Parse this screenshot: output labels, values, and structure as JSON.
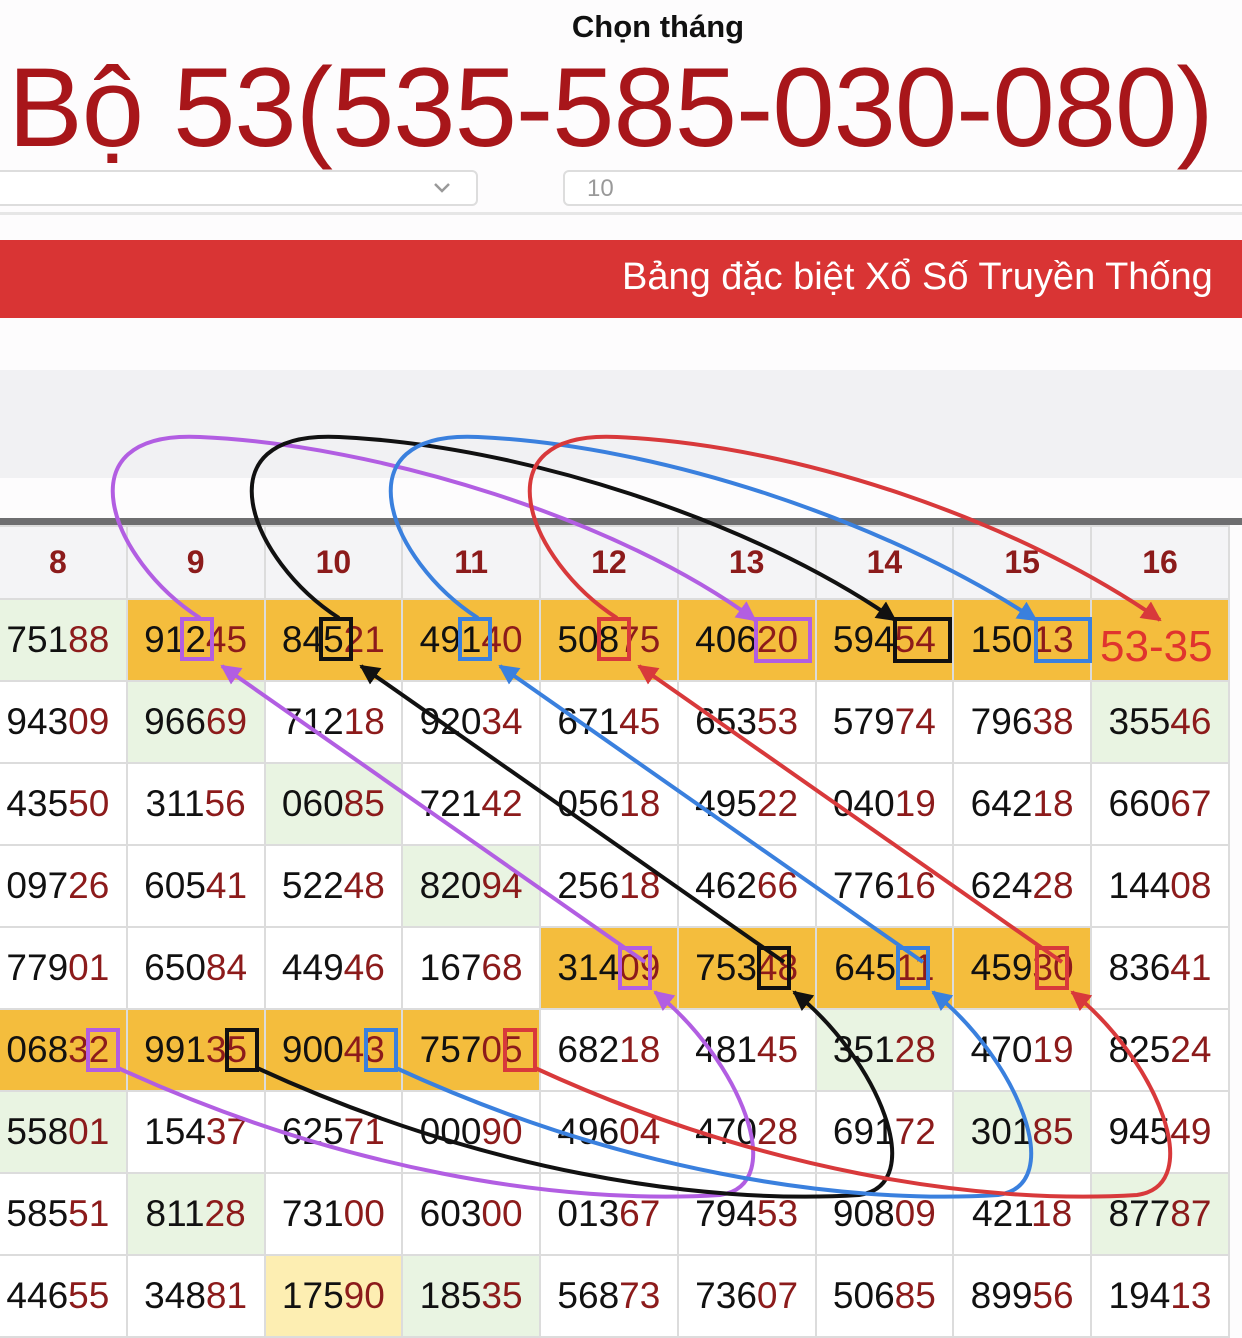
{
  "header": {
    "month_label": "Chọn tháng",
    "select_1_value": "",
    "select_2_value": "10"
  },
  "title": "Bộ 53(535-585-030-080)",
  "banner": "Bảng đặc biệt Xổ Số Truyền Thống",
  "table": {
    "columns": [
      "8",
      "9",
      "10",
      "11",
      "12",
      "13",
      "14",
      "15",
      "16"
    ],
    "rows": [
      [
        "75188",
        "91245",
        "84521",
        "49140",
        "50875",
        "40620",
        "59454",
        "15013",
        "53-35"
      ],
      [
        "94309",
        "96669",
        "71218",
        "92034",
        "67145",
        "65353",
        "57974",
        "79638",
        "35546"
      ],
      [
        "43550",
        "31156",
        "06085",
        "72142",
        "05618",
        "49522",
        "04019",
        "64218",
        "66067"
      ],
      [
        "09726",
        "60541",
        "52248",
        "82094",
        "25618",
        "46266",
        "77616",
        "62428",
        "14408"
      ],
      [
        "77901",
        "65084",
        "44946",
        "16768",
        "31409",
        "75348",
        "64511",
        "45930",
        "83641"
      ],
      [
        "06832",
        "99135",
        "90043",
        "75705",
        "68218",
        "48145",
        "35128",
        "47019",
        "82524"
      ],
      [
        "55801",
        "15437",
        "62571",
        "00090",
        "49604",
        "47028",
        "69172",
        "30185",
        "94549"
      ],
      [
        "58551",
        "81128",
        "73100",
        "60300",
        "01367",
        "79453",
        "90809",
        "42118",
        "87787"
      ],
      [
        "44655",
        "34881",
        "17590",
        "18535",
        "56873",
        "73607",
        "50685",
        "89956",
        "19413"
      ]
    ],
    "cell_highlights": [
      [
        "green",
        "orange",
        "orange",
        "orange",
        "orange",
        "orange",
        "orange",
        "orange",
        "orange"
      ],
      [
        "",
        "green",
        "",
        "",
        "",
        "",
        "",
        "",
        "green"
      ],
      [
        "",
        "",
        "green",
        "",
        "",
        "",
        "",
        "",
        ""
      ],
      [
        "",
        "",
        "",
        "green",
        "",
        "",
        "",
        "",
        ""
      ],
      [
        "",
        "",
        "",
        "",
        "orange",
        "orange",
        "orange",
        "orange",
        ""
      ],
      [
        "orange",
        "orange",
        "orange",
        "orange",
        "",
        "",
        "green",
        "",
        ""
      ],
      [
        "green",
        "",
        "",
        "",
        "",
        "",
        "",
        "green",
        ""
      ],
      [
        "",
        "green",
        "",
        "",
        "",
        "",
        "",
        "",
        "green"
      ],
      [
        "",
        "",
        "yellow",
        "green",
        "",
        "",
        "",
        "",
        ""
      ]
    ]
  },
  "annotation_colors": {
    "purple": "#b25ee2",
    "black": "#111111",
    "blue": "#3a80de",
    "red": "#d8393b"
  },
  "colors": {
    "title": "#a8161a",
    "banner": "#d93434",
    "highlight": "#f4bd3d",
    "tail_digits": "#8c1b1b"
  }
}
